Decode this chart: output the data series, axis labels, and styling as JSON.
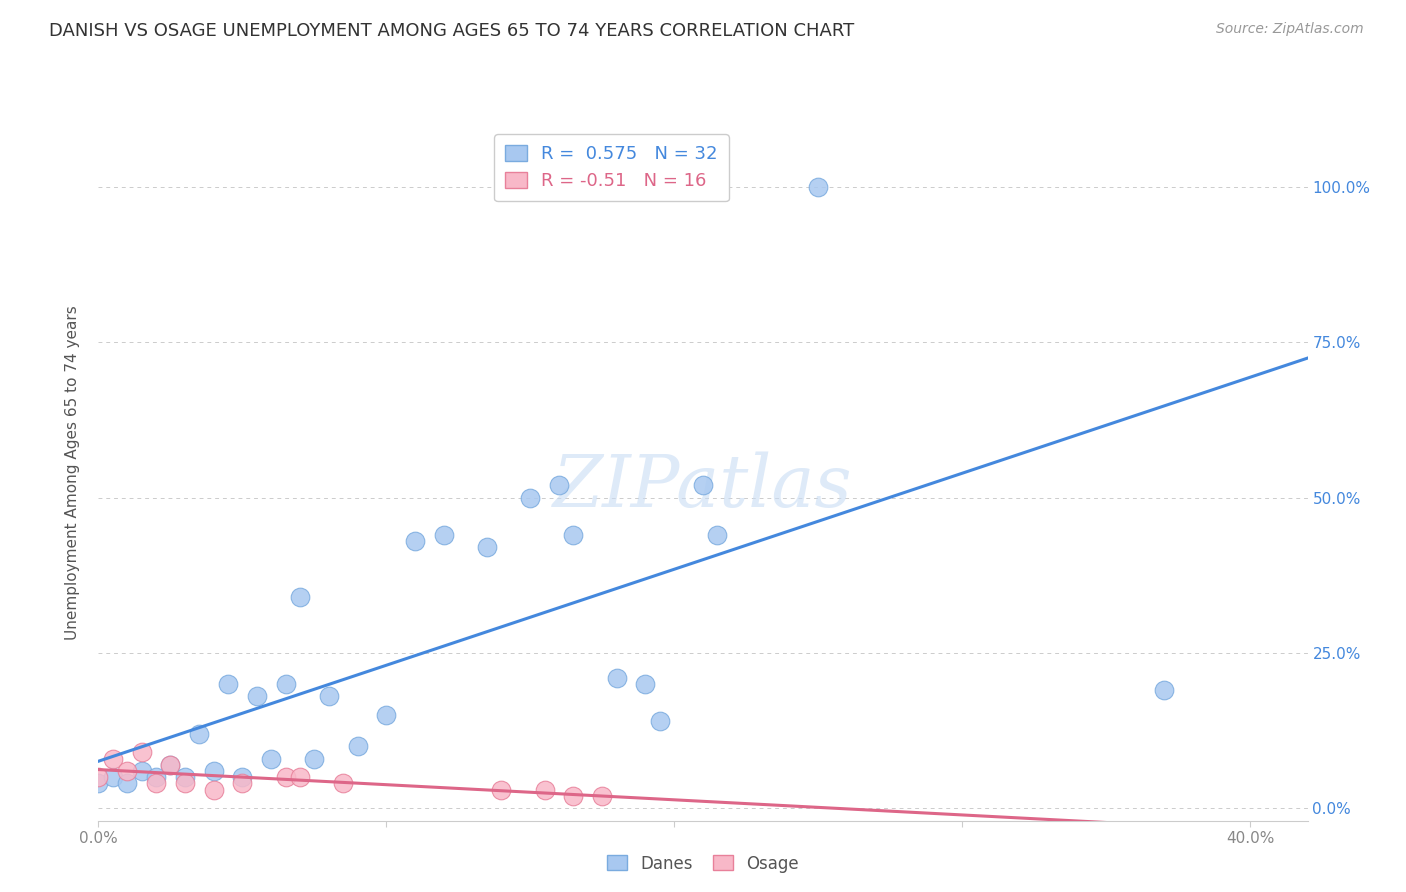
{
  "title": "DANISH VS OSAGE UNEMPLOYMENT AMONG AGES 65 TO 74 YEARS CORRELATION CHART",
  "source": "Source: ZipAtlas.com",
  "ylabel": "Unemployment Among Ages 65 to 74 years",
  "xlim": [
    0.0,
    0.42
  ],
  "ylim": [
    -0.02,
    1.1
  ],
  "xticks": [
    0.0,
    0.1,
    0.2,
    0.3,
    0.4
  ],
  "yticks": [
    0.0,
    0.25,
    0.5,
    0.75,
    1.0
  ],
  "ytick_labels": [
    "0.0%",
    "25.0%",
    "50.0%",
    "75.0%",
    "100.0%"
  ],
  "xtick_labels": [
    "0.0%",
    "",
    "",
    "",
    "40.0%"
  ],
  "danes_color": "#a8c8f0",
  "danes_edge_color": "#7aabdf",
  "osage_color": "#f8b8c8",
  "osage_edge_color": "#e8809a",
  "line_blue": "#4488dd",
  "line_pink": "#dd6688",
  "danes_R": 0.575,
  "danes_N": 32,
  "osage_R": -0.51,
  "osage_N": 16,
  "danes_points_x": [
    0.0,
    0.005,
    0.01,
    0.015,
    0.02,
    0.025,
    0.03,
    0.035,
    0.04,
    0.045,
    0.05,
    0.055,
    0.06,
    0.065,
    0.07,
    0.075,
    0.08,
    0.09,
    0.1,
    0.11,
    0.12,
    0.135,
    0.15,
    0.16,
    0.165,
    0.18,
    0.19,
    0.195,
    0.21,
    0.215,
    0.37,
    0.25
  ],
  "danes_points_y": [
    0.04,
    0.05,
    0.04,
    0.06,
    0.05,
    0.07,
    0.05,
    0.12,
    0.06,
    0.2,
    0.05,
    0.18,
    0.08,
    0.2,
    0.34,
    0.08,
    0.18,
    0.1,
    0.15,
    0.43,
    0.44,
    0.42,
    0.5,
    0.52,
    0.44,
    0.21,
    0.2,
    0.14,
    0.52,
    0.44,
    0.19,
    1.0
  ],
  "osage_points_x": [
    0.0,
    0.005,
    0.01,
    0.015,
    0.02,
    0.025,
    0.03,
    0.04,
    0.05,
    0.065,
    0.07,
    0.085,
    0.14,
    0.155,
    0.165,
    0.175
  ],
  "osage_points_y": [
    0.05,
    0.08,
    0.06,
    0.09,
    0.04,
    0.07,
    0.04,
    0.03,
    0.04,
    0.05,
    0.05,
    0.04,
    0.03,
    0.03,
    0.02,
    0.02
  ],
  "watermark": "ZIPatlas",
  "background_color": "#ffffff",
  "grid_color": "#cccccc",
  "title_color": "#333333",
  "source_color": "#999999",
  "ylabel_color": "#555555",
  "ytick_color": "#4488dd",
  "xtick_color": "#888888"
}
